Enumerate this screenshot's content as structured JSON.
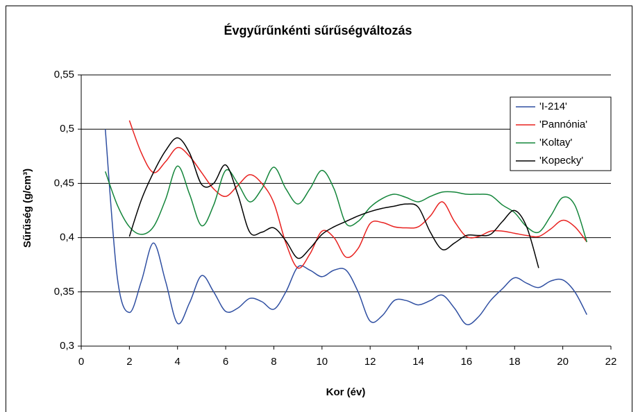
{
  "chart_data": {
    "type": "line",
    "title": "Évgyűrűnkénti sűrűségváltozás",
    "x_label": "Kor (év)",
    "y_label": "Sűrűség (g/cm³)",
    "x": [
      1,
      1.5,
      2,
      2.5,
      3,
      3.5,
      4,
      4.5,
      5,
      5.5,
      6,
      6.5,
      7,
      7.5,
      8,
      8.5,
      9,
      9.5,
      10,
      10.5,
      11,
      11.5,
      12,
      12.5,
      13,
      13.5,
      14,
      14.5,
      15,
      15.5,
      16,
      16.5,
      17,
      17.5,
      18,
      18.5,
      19,
      19.5,
      20,
      20.5,
      21
    ],
    "series": [
      {
        "name": "'I-214'",
        "color": "#2e4ea1",
        "values": [
          0.5,
          0.363,
          0.331,
          0.36,
          0.395,
          0.36,
          0.321,
          0.34,
          0.365,
          0.35,
          0.332,
          0.335,
          0.344,
          0.341,
          0.334,
          0.35,
          0.373,
          0.37,
          0.364,
          0.37,
          0.37,
          0.35,
          0.323,
          0.328,
          0.342,
          0.342,
          0.338,
          0.342,
          0.347,
          0.335,
          0.32,
          0.327,
          0.342,
          0.353,
          0.363,
          0.358,
          0.354,
          0.36,
          0.361,
          0.35,
          0.329
        ]
      },
      {
        "name": "'Pannónia'",
        "color": "#e8211f",
        "values": [
          null,
          null,
          0.508,
          0.478,
          0.46,
          0.47,
          0.483,
          0.475,
          0.46,
          0.445,
          0.438,
          0.448,
          0.458,
          0.45,
          0.432,
          0.395,
          0.372,
          0.385,
          0.406,
          0.4,
          0.382,
          0.39,
          0.413,
          0.414,
          0.41,
          0.409,
          0.41,
          0.42,
          0.433,
          0.415,
          0.401,
          0.401,
          0.406,
          0.406,
          0.404,
          0.402,
          0.401,
          0.408,
          0.416,
          0.41,
          0.396
        ]
      },
      {
        "name": "'Koltay'",
        "color": "#13853a",
        "values": [
          0.461,
          0.43,
          0.41,
          0.403,
          0.41,
          0.435,
          0.466,
          0.44,
          0.411,
          0.43,
          0.462,
          0.45,
          0.433,
          0.445,
          0.465,
          0.445,
          0.431,
          0.445,
          0.462,
          0.445,
          0.413,
          0.415,
          0.428,
          0.436,
          0.44,
          0.437,
          0.433,
          0.438,
          0.442,
          0.442,
          0.44,
          0.44,
          0.439,
          0.43,
          0.423,
          0.41,
          0.405,
          0.42,
          0.437,
          0.43,
          0.396
        ]
      },
      {
        "name": "'Kopecky'",
        "color": "#000000",
        "values": [
          null,
          null,
          0.401,
          0.435,
          0.46,
          0.48,
          0.492,
          0.478,
          0.449,
          0.45,
          0.467,
          0.44,
          0.405,
          0.405,
          0.409,
          0.397,
          0.381,
          0.39,
          0.403,
          0.41,
          0.415,
          0.42,
          0.424,
          0.427,
          0.429,
          0.431,
          0.428,
          0.405,
          0.389,
          0.395,
          0.402,
          0.402,
          0.403,
          0.415,
          0.425,
          0.41,
          0.372,
          null,
          null,
          null,
          null
        ]
      }
    ],
    "xlim": [
      0,
      22
    ],
    "xticks": [
      0,
      2,
      4,
      6,
      8,
      10,
      12,
      14,
      16,
      18,
      20,
      22
    ],
    "ylim": [
      0.3,
      0.55
    ],
    "yticks": [
      {
        "value": 0.3,
        "label": "0,3"
      },
      {
        "value": 0.35,
        "label": "0,35"
      },
      {
        "value": 0.4,
        "label": "0,4"
      },
      {
        "value": 0.45,
        "label": "0,45"
      },
      {
        "value": 0.5,
        "label": "0,5"
      },
      {
        "value": 0.55,
        "label": "0,55"
      }
    ],
    "grid": true,
    "legend": "top-right"
  }
}
